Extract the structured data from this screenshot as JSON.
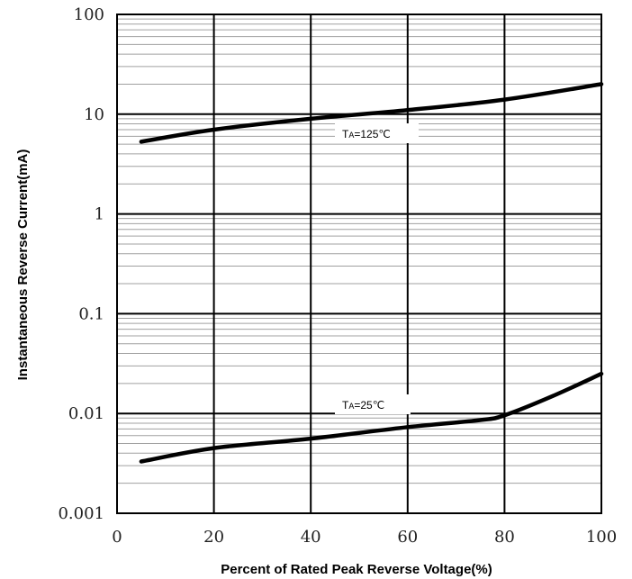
{
  "chart_data": {
    "type": "line",
    "xlabel": "Percent  of Rated Peak Reverse Voltage(%)",
    "ylabel": "Instantaneous Reverse  Current(mA)",
    "xlim": [
      0,
      100
    ],
    "ylim": [
      0.001,
      100
    ],
    "yscale": "log",
    "grid": true,
    "x_ticks": [
      "0",
      "20",
      "40",
      "60",
      "80",
      "100"
    ],
    "y_ticks": [
      "100",
      "10",
      "1",
      "0.1",
      "0.01",
      "0.001"
    ],
    "x_tick_values": [
      0,
      20,
      40,
      60,
      80,
      100
    ],
    "y_tick_values": [
      100,
      10,
      1,
      0.1,
      0.01,
      0.001
    ],
    "series": [
      {
        "name": "TA=125℃",
        "label_parts": {
          "main": "T",
          "sub": "A",
          "rest": "=125℃"
        },
        "x": [
          5,
          20,
          40,
          60,
          80,
          100
        ],
        "y": [
          5.3,
          7.0,
          9.0,
          11.0,
          14.0,
          20.0
        ]
      },
      {
        "name": "TA=25℃",
        "label_parts": {
          "main": "T",
          "sub": "A",
          "rest": "=25℃"
        },
        "x": [
          5,
          20,
          40,
          60,
          75,
          80,
          90,
          100
        ],
        "y": [
          0.0033,
          0.0045,
          0.0056,
          0.0073,
          0.0086,
          0.0096,
          0.015,
          0.025
        ]
      }
    ],
    "colors": {
      "line": "#000000",
      "major_grid": "#000000",
      "minor_grid": "#a0a0a0"
    }
  }
}
